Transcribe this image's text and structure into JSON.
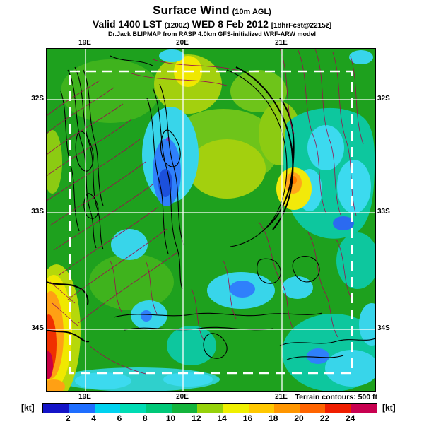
{
  "header": {
    "title": "Surface Wind",
    "title_paren": "(10m AGL)",
    "valid": {
      "prefix": "Valid 1400 LST",
      "zulu": "(1200Z)",
      "date": "WED 8 Feb 2012",
      "fcst": "[18hrFcst@2215z]"
    },
    "credit": "Dr.Jack BLIPMAP from RASP 4.0km GFS-initialized WRF-ARW model"
  },
  "map": {
    "x_tick_labels": [
      "19E",
      "20E",
      "21E"
    ],
    "y_tick_labels": [
      "32S",
      "33S",
      "34S"
    ]
  },
  "colorbar": {
    "unit_left": "[kt]",
    "unit_right": "[kt]",
    "ticks": [
      "2",
      "4",
      "6",
      "8",
      "10",
      "12",
      "14",
      "16",
      "18",
      "20",
      "22",
      "24"
    ],
    "colors": [
      "#1414c8",
      "#1e6eff",
      "#00d2f0",
      "#00dcb4",
      "#00c878",
      "#14b43c",
      "#96d20a",
      "#f0f000",
      "#ffc800",
      "#ff9600",
      "#ff6400",
      "#f01e00",
      "#c80050"
    ]
  },
  "footer": {
    "terrain_note": "Terrain contours: 500 ft"
  },
  "legend_colors": {
    "field_green": "#1ea11e",
    "field_cyan": "#38d5ea",
    "field_blue": "#2f80fb",
    "field_yellow": "#f0e800",
    "field_orange": "#ffa014",
    "field_red": "#f03000",
    "terrain_contour_black": "#000000",
    "streamline_maroon": "#99104e",
    "grid_white": "#ffffff"
  }
}
